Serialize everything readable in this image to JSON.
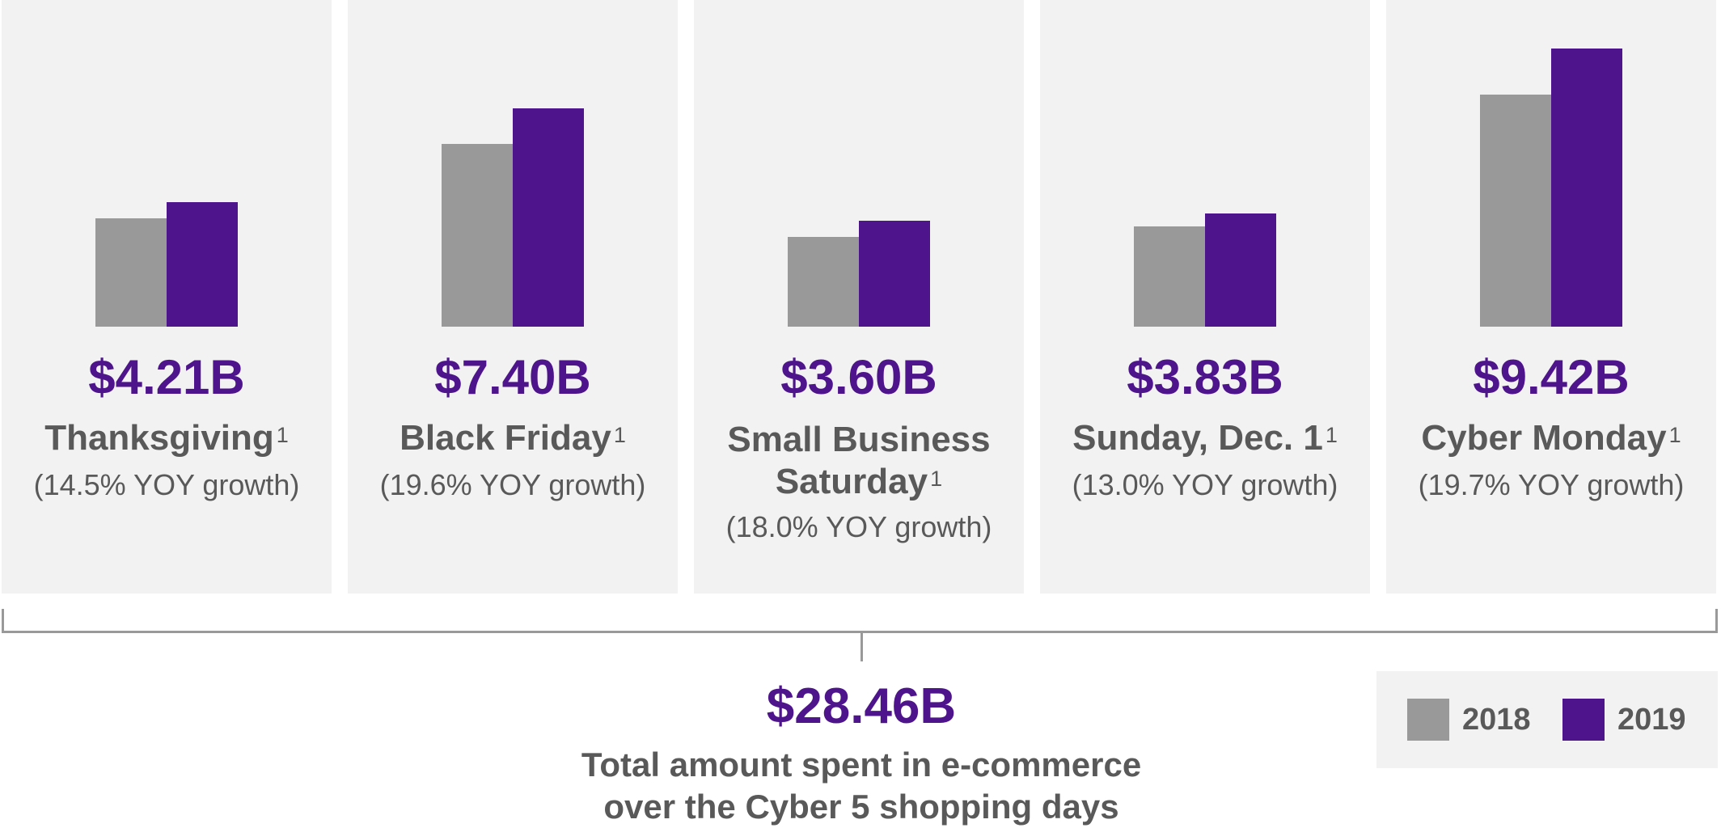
{
  "colors": {
    "y2018": "#999999",
    "y2019": "#4e148c",
    "accent": "#4e148c",
    "text": "#595959"
  },
  "chart_data": {
    "type": "bar",
    "series_names": [
      "2018",
      "2019"
    ],
    "categories": [
      "Thanksgiving",
      "Black Friday",
      "Small Business Saturday",
      "Sunday, Dec. 1",
      "Cyber Monday"
    ],
    "series": [
      {
        "name": "2018",
        "values": [
          3.68,
          6.19,
          3.05,
          3.39,
          7.87
        ]
      },
      {
        "name": "2019",
        "values": [
          4.21,
          7.4,
          3.6,
          3.83,
          9.42
        ]
      }
    ],
    "ylim": [
      0,
      9.42
    ],
    "panels": [
      {
        "amount": "$4.21B",
        "label": "Thanksgiving",
        "sup": "1",
        "growth": "(14.5% YOY growth)"
      },
      {
        "amount": "$7.40B",
        "label": "Black Friday",
        "sup": "1",
        "growth": "(19.6% YOY growth)"
      },
      {
        "amount": "$3.60B",
        "label_line1": "Small Business",
        "label_line2": "Saturday",
        "sup": "1",
        "growth": "(18.0% YOY growth)"
      },
      {
        "amount": "$3.83B",
        "label": "Sunday, Dec. 1",
        "sup": "1",
        "growth": "(13.0% YOY growth)"
      },
      {
        "amount": "$9.42B",
        "label": "Cyber Monday",
        "sup": "1",
        "growth": "(19.7% YOY growth)"
      }
    ],
    "total": {
      "amount": "$28.46B",
      "label_line1": "Total amount spent in e-commerce",
      "label_line2": "over the Cyber 5 shopping days"
    },
    "legend": [
      "2018",
      "2019"
    ]
  }
}
